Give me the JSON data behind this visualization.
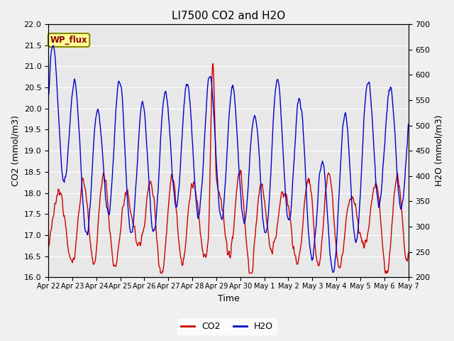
{
  "title": "LI7500 CO2 and H2O",
  "xlabel": "Time",
  "ylabel_left": "CO2 (mmol/m3)",
  "ylabel_right": "H2O (mmol/m3)",
  "ylim_left": [
    16.0,
    22.0
  ],
  "ylim_right": [
    200,
    700
  ],
  "yticks_left": [
    16.0,
    16.5,
    17.0,
    17.5,
    18.0,
    18.5,
    19.0,
    19.5,
    20.0,
    20.5,
    21.0,
    21.5,
    22.0
  ],
  "yticks_right": [
    200,
    250,
    300,
    350,
    400,
    450,
    500,
    550,
    600,
    650,
    700
  ],
  "xtick_labels": [
    "Apr 22",
    "Apr 23",
    "Apr 24",
    "Apr 25",
    "Apr 26",
    "Apr 27",
    "Apr 28",
    "Apr 29",
    "Apr 30",
    "May 1",
    "May 2",
    "May 3",
    "May 4",
    "May 5",
    "May 6",
    "May 7"
  ],
  "co2_color": "#cc0000",
  "h2o_color": "#0000cc",
  "fig_bg_color": "#f0f0f0",
  "plot_bg_color": "#e8e8e8",
  "legend_label_co2": "CO2",
  "legend_label_h2o": "H2O",
  "annotation_text": "WP_flux",
  "annotation_bg": "#ffff99",
  "annotation_border": "#888800",
  "line_width": 1.0,
  "title_fontsize": 11,
  "label_fontsize": 9,
  "tick_fontsize": 8,
  "xtick_fontsize": 7
}
